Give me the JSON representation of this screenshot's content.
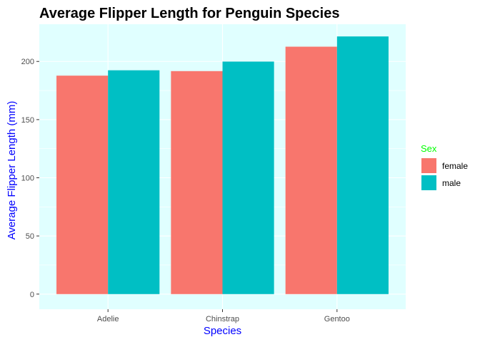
{
  "chart_data": {
    "type": "bar",
    "title": "Average Flipper Length for Penguin Species",
    "xlabel": "Species",
    "ylabel": "Average Flipper Length (mm)",
    "categories": [
      "Adelie",
      "Chinstrap",
      "Gentoo"
    ],
    "series": [
      {
        "name": "female",
        "values": [
          187.8,
          191.7,
          212.7
        ],
        "color": "#F8766D"
      },
      {
        "name": "male",
        "values": [
          192.4,
          199.9,
          221.5
        ],
        "color": "#00BFC4"
      }
    ],
    "ylim": [
      -13,
      232
    ],
    "yticks": [
      0,
      50,
      100,
      150,
      200
    ],
    "legend": {
      "title": "Sex",
      "position": "right"
    },
    "grid": true,
    "colors": {
      "panel_background": "#E0FFFF",
      "grid": "#FFFFFF",
      "title": "#000000",
      "axis_title": "#0000FF",
      "legend_title": "#00FF00",
      "tick_label": "#4D4D4D"
    }
  }
}
